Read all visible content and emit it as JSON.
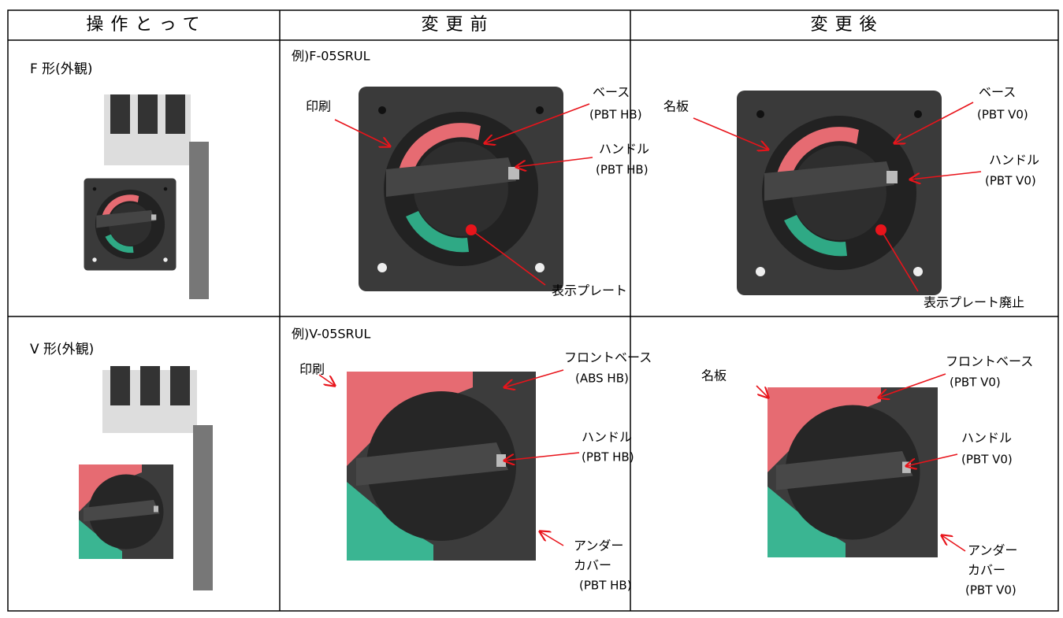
{
  "header": {
    "columns": [
      "操作とって",
      "変更前",
      "変更後"
    ]
  },
  "rows": [
    {
      "label": "F 形(外観)",
      "before": {
        "example": "例)F-05SRUL",
        "notes": [
          "印刷",
          "ベース",
          "(PBT HB)",
          "ハンドル",
          "(PBT HB)",
          "表示プレート"
        ]
      },
      "after": {
        "notes": [
          "名板",
          "ベース",
          "(PBT V0)",
          "ハンドル",
          "(PBT V0)",
          "表示プレート廃止"
        ]
      }
    },
    {
      "label": "V 形(外観)",
      "before": {
        "example": "例)V-05SRUL",
        "notes": [
          "印刷",
          "フロントベース",
          "(ABS HB)",
          "ハンドル",
          "(PBT HB)",
          "アンダー",
          "カバー",
          "(PBT HB)"
        ]
      },
      "after": {
        "notes": [
          "名板",
          "フロントベース",
          "(PBT V0)",
          "ハンドル",
          "(PBT V0)",
          "アンダー",
          "カバー",
          "(PBT V0)"
        ]
      }
    }
  ]
}
